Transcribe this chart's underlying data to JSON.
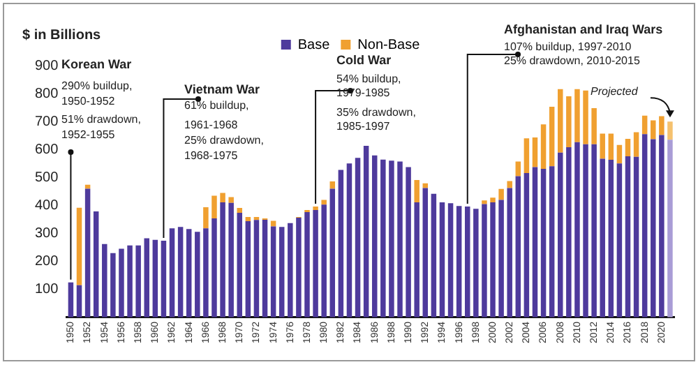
{
  "chart_data": {
    "type": "bar",
    "stacked": true,
    "ylabel": "$ in Billions",
    "categories": [
      "1950",
      null,
      "1952",
      null,
      "1954",
      null,
      "1956",
      null,
      "1958",
      null,
      "1960",
      null,
      "1962",
      null,
      "1964",
      null,
      "1966",
      null,
      "1968",
      null,
      "1970",
      null,
      "1972",
      null,
      "1974",
      null,
      "1976",
      null,
      "1978",
      null,
      "1980",
      null,
      "1982",
      null,
      "1984",
      null,
      "1986",
      null,
      "1988",
      null,
      "1990",
      null,
      "1992",
      null,
      "1994",
      null,
      "1996",
      null,
      "1998",
      null,
      "2000",
      null,
      "2002",
      null,
      "2004",
      null,
      "2006",
      null,
      "2008",
      null,
      "2010",
      null,
      "2012",
      null,
      "2014",
      null,
      "2016",
      null,
      "2018",
      null,
      "2020",
      null
    ],
    "series": [
      {
        "name": "Base",
        "color": "#4e3a9c",
        "colors": [
          "#4e3a9c",
          "#4e3a9c",
          "#4e3a9c",
          "#4e3a9c",
          "#4e3a9c",
          "#4e3a9c",
          "#4e3a9c",
          "#4e3a9c",
          "#4e3a9c",
          "#4e3a9c",
          "#4e3a9c",
          "#4e3a9c",
          "#4e3a9c",
          "#4e3a9c",
          "#4e3a9c",
          "#4e3a9c",
          "#4e3a9c",
          "#4e3a9c",
          "#4e3a9c",
          "#4e3a9c",
          "#4e3a9c",
          "#4e3a9c",
          "#4e3a9c",
          "#4e3a9c",
          "#4e3a9c",
          "#4e3a9c",
          "#4e3a9c",
          "#4e3a9c",
          "#4e3a9c",
          "#4e3a9c",
          "#4e3a9c",
          "#4e3a9c",
          "#4e3a9c",
          "#4e3a9c",
          "#4e3a9c",
          "#4e3a9c",
          "#4e3a9c",
          "#4e3a9c",
          "#4e3a9c",
          "#4e3a9c",
          "#4e3a9c",
          "#4e3a9c",
          "#4e3a9c",
          "#4e3a9c",
          "#4e3a9c",
          "#4e3a9c",
          "#4e3a9c",
          "#4e3a9c",
          "#4e3a9c",
          "#4e3a9c",
          "#4e3a9c",
          "#4e3a9c",
          "#4e3a9c",
          "#4e3a9c",
          "#4e3a9c",
          "#4e3a9c",
          "#4e3a9c",
          "#4e3a9c",
          "#4e3a9c",
          "#4e3a9c",
          "#4e3a9c",
          "#4e3a9c",
          "#4e3a9c",
          "#4e3a9c",
          "#4e3a9c",
          "#4e3a9c",
          "#4e3a9c",
          "#4e3a9c",
          "#4e3a9c",
          "#4e3a9c",
          "#4e3a9c",
          "#a99cd6"
        ],
        "values": [
          125,
          115,
          460,
          379,
          262,
          230,
          245,
          257,
          257,
          283,
          277,
          274,
          318,
          323,
          316,
          306,
          318,
          354,
          411,
          409,
          374,
          344,
          348,
          349,
          325,
          323,
          337,
          356,
          376,
          384,
          403,
          460,
          527,
          550,
          570,
          613,
          579,
          564,
          560,
          557,
          537,
          411,
          462,
          442,
          411,
          408,
          398,
          396,
          388,
          405,
          411,
          420,
          462,
          505,
          516,
          537,
          531,
          540,
          589,
          608,
          626,
          619,
          619,
          567,
          563,
          550,
          576,
          574,
          655,
          637,
          652,
          635
        ]
      },
      {
        "name": "Non-Base",
        "color": "#f0a030",
        "colors": [
          "#f0a030",
          "#f0a030",
          "#f0a030",
          "#f0a030",
          "#f0a030",
          "#f0a030",
          "#f0a030",
          "#f0a030",
          "#f0a030",
          "#f0a030",
          "#f0a030",
          "#f0a030",
          "#f0a030",
          "#f0a030",
          "#f0a030",
          "#f0a030",
          "#f0a030",
          "#f0a030",
          "#f0a030",
          "#f0a030",
          "#f0a030",
          "#f0a030",
          "#f0a030",
          "#f0a030",
          "#f0a030",
          "#f0a030",
          "#f0a030",
          "#f0a030",
          "#f0a030",
          "#f0a030",
          "#f0a030",
          "#f0a030",
          "#f0a030",
          "#f0a030",
          "#f0a030",
          "#f0a030",
          "#f0a030",
          "#f0a030",
          "#f0a030",
          "#f0a030",
          "#f0a030",
          "#f0a030",
          "#f0a030",
          "#f0a030",
          "#f0a030",
          "#f0a030",
          "#f0a030",
          "#f0a030",
          "#f0a030",
          "#f0a030",
          "#f0a030",
          "#f0a030",
          "#f0a030",
          "#f0a030",
          "#f0a030",
          "#f0a030",
          "#f0a030",
          "#f0a030",
          "#f0a030",
          "#f0a030",
          "#f0a030",
          "#f0a030",
          "#f0a030",
          "#f0a030",
          "#f0a030",
          "#f0a030",
          "#f0a030",
          "#f0a030",
          "#f0a030",
          "#f0a030",
          "#f0a030",
          "#f5c16e"
        ],
        "values": [
          0,
          277,
          14,
          0,
          0,
          0,
          0,
          0,
          0,
          0,
          0,
          0,
          0,
          0,
          0,
          0,
          76,
          81,
          34,
          21,
          17,
          15,
          11,
          5,
          20,
          0,
          0,
          3,
          8,
          12,
          17,
          26,
          0,
          0,
          0,
          0,
          0,
          0,
          0,
          0,
          0,
          80,
          17,
          0,
          0,
          0,
          0,
          0,
          0,
          13,
          17,
          39,
          25,
          52,
          124,
          106,
          159,
          213,
          227,
          182,
          190,
          192,
          129,
          90,
          94,
          66,
          62,
          88,
          66,
          67,
          67,
          65
        ]
      }
    ],
    "ylim": [
      0,
      900
    ],
    "yticks": [
      100,
      200,
      300,
      400,
      500,
      600,
      700,
      800,
      900
    ],
    "grid": false,
    "legend": "top",
    "annotations": [
      "Korean War",
      "290% buildup,",
      "1950-1952",
      "51% drawdown,",
      "1952-1955",
      "Vietnam War",
      "61% buildup,",
      "1961-1968",
      "25% drawdown,",
      "1968-1975",
      "Cold War",
      "54% buildup,",
      "1979-1985",
      "35% drawdown,",
      "1985-1997",
      "Afghanistan and Iraq Wars",
      "107% buildup, 1997-2010",
      "25% drawdown, 2010-2015",
      "Projected"
    ]
  }
}
